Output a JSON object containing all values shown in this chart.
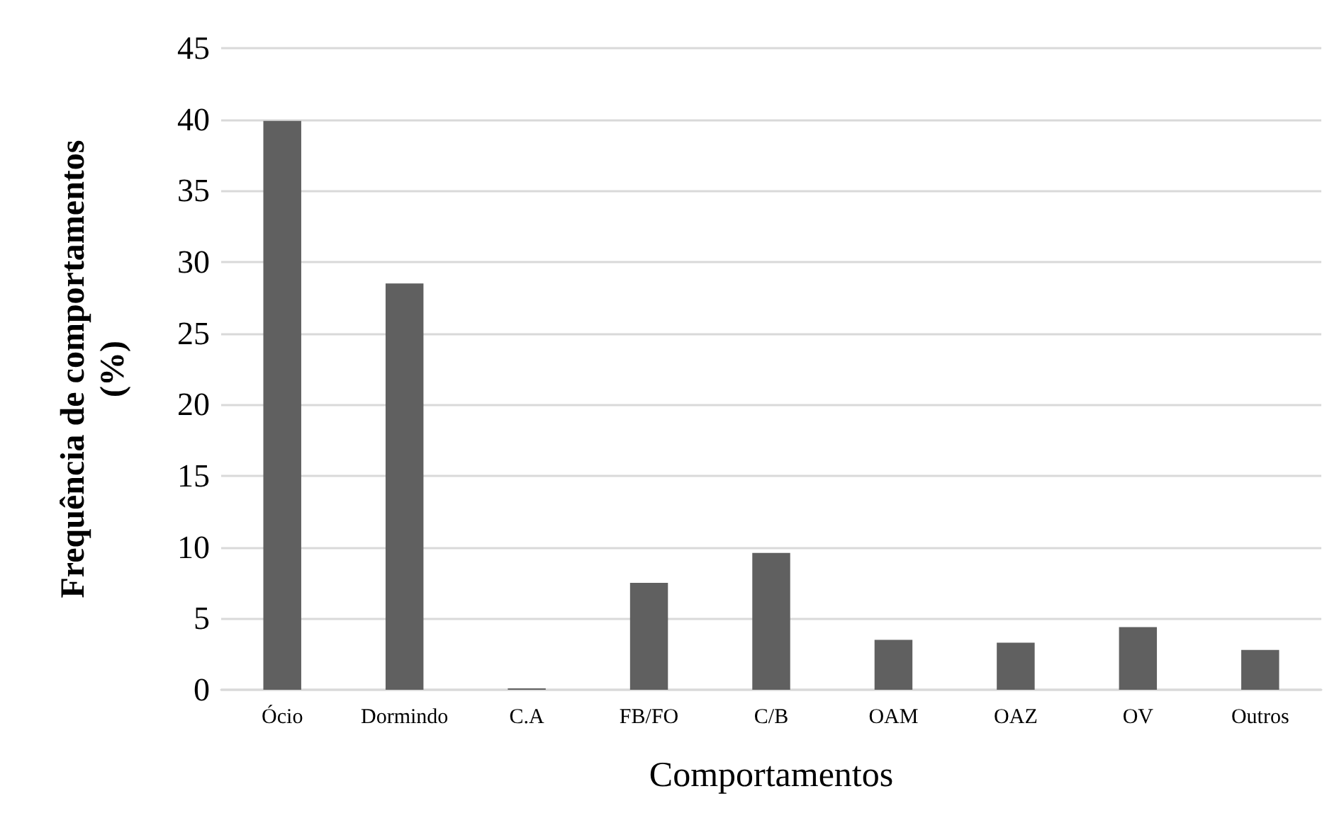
{
  "chart_data": {
    "type": "bar",
    "categories": [
      "Ócio",
      "Dormindo",
      "C.A",
      "FB/FO",
      "C/B",
      "OAM",
      "OAZ",
      "OV",
      "Outros"
    ],
    "values": [
      39.9,
      28.5,
      0.1,
      7.5,
      9.6,
      3.5,
      3.3,
      4.4,
      2.8
    ],
    "color": "#606060",
    "xlabel": "Comportamentos",
    "ylabel": "Frequência de comportamentos\n(%)",
    "ylim": [
      0,
      45
    ],
    "yticks": [
      0,
      5,
      10,
      15,
      20,
      25,
      30,
      35,
      40,
      45
    ],
    "grid": "y"
  }
}
